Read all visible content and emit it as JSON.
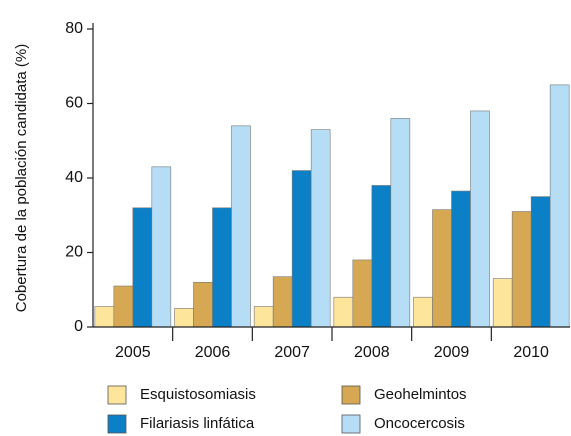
{
  "chart_data": {
    "type": "bar",
    "y_label": "Cobertura de la población candidata (%)",
    "categories": [
      "2005",
      "2006",
      "2007",
      "2008",
      "2009",
      "2010"
    ],
    "series": [
      {
        "name": "Esquistosomiasis",
        "color": "#fde59c",
        "values": [
          5.5,
          5,
          5.5,
          8,
          8,
          13
        ]
      },
      {
        "name": "Geohelmintos",
        "color": "#d6a853",
        "values": [
          11,
          12,
          13.5,
          18,
          31.5,
          31
        ]
      },
      {
        "name": "Filariasis linfática",
        "color": "#0b80c6",
        "values": [
          32,
          32,
          42,
          38,
          36.5,
          35
        ]
      },
      {
        "name": "Oncocercosis",
        "color": "#b5ddf6",
        "values": [
          43,
          54,
          53,
          56,
          58,
          65
        ]
      }
    ],
    "ylim": [
      0,
      80
    ],
    "yticks": [
      0,
      20,
      40,
      60,
      80
    ],
    "grid": false
  }
}
